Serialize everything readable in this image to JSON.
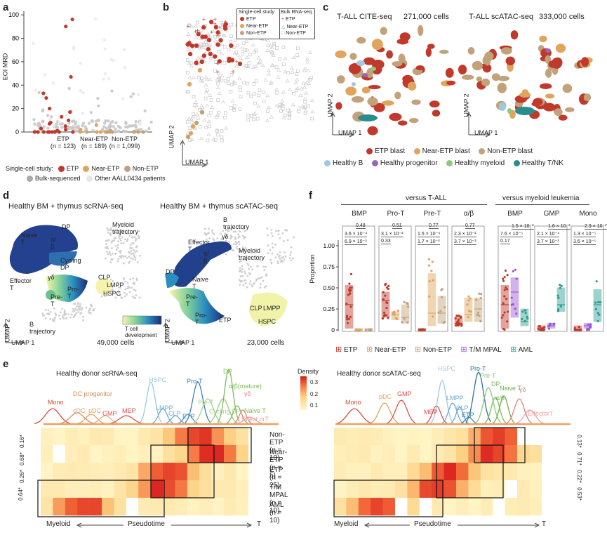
{
  "panel_labels": {
    "a": "a",
    "b": "b",
    "c": "c",
    "d": "d",
    "e": "e",
    "f": "f"
  },
  "colors": {
    "etp": "#c0392b",
    "near_etp": "#e0a45c",
    "non_etp": "#c2a27a",
    "tm_mpal": "#9b59d0",
    "aml": "#2a9d8f",
    "bulk": "#b0b0b0",
    "healthy_b": "#9ecae1",
    "healthy_prog": "#9467bd",
    "healthy_myeloid": "#8cc97a",
    "healthy_tnk": "#2a8d8d"
  },
  "panel_a": {
    "ylabel": "EOI MRD",
    "yticks": [
      "0",
      "20",
      "40",
      "60",
      "80",
      "100"
    ],
    "groups": [
      {
        "name": "ETP",
        "n": "(n = 123)"
      },
      {
        "name": "Near-ETP",
        "n": "(n = 189)"
      },
      {
        "name": "Non-ETP",
        "n": "(n = 1,099)"
      }
    ],
    "legend_title": "Single-cell study:",
    "legend_items": [
      "ETP",
      "Near-ETP",
      "Non-ETP"
    ],
    "legend_row2": [
      "Bulk-sequenced",
      "Other AALL0434 patients"
    ]
  },
  "panel_b": {
    "axis_x": "UMAP 1",
    "axis_y": "UMAP 2",
    "legend_sc_title": "Single-cell study",
    "legend_sc": [
      "ETP",
      "Near-ETP",
      "Non-ETP"
    ],
    "legend_bulk_title": "Bulk RNA-seq",
    "legend_bulk": [
      "ETP",
      "Near-ETP",
      "Non-ETP"
    ]
  },
  "panel_c": {
    "left_title": "T-ALL CITE-seq",
    "left_count": "271,000 cells",
    "right_title": "T-ALL scATAC-seq",
    "right_count": "333,000 cells",
    "axis_x": "UMAP 1",
    "axis_y": "UMAP 2",
    "legend_row1": [
      "ETP blast",
      "Near-ETP blast",
      "Non-ETP blast"
    ],
    "legend_row2": [
      "Healthy B",
      "Healthy progenitor",
      "Healthy myeloid",
      "Healthy T/NK"
    ]
  },
  "panel_d": {
    "left_title": "Healthy BM + thymus scRNA-seq",
    "left_count": "49,000 cells",
    "right_title": "Healthy BM + thymus scATAC-seq",
    "right_count": "23,000 cells",
    "axis_x": "UMAP 1",
    "axis_y": "UMAP 2",
    "colorbar_label": "T cell development",
    "left_labels": {
      "dp": "DP",
      "ab": "α/β",
      "naive": "Naive T",
      "cycling": "Cycling DP",
      "effector": "Effector T",
      "gd": "γδ",
      "prot": "Pro-T",
      "pret": "Pre-T",
      "clp": "CLP",
      "lmpp": "LMPP",
      "hspc": "HSPC",
      "myeloid": "Myeloid trajectory",
      "btraj": "B trajectory"
    },
    "right_labels": {
      "btraj": "B trajectory",
      "effector": "Effector T",
      "gd": "γδ",
      "ab": "α/β",
      "myeloid": "Myeloid trajectory",
      "dp": "DP",
      "naive": "Naive T",
      "pret": "Pre-T",
      "prot": "Pro-T",
      "etp": "ETP",
      "clp": "CLP",
      "lmpp": "LMPP",
      "hspc": "HSPC"
    }
  },
  "panel_e": {
    "left_title": "Healthy donor scRNA-seq",
    "right_title": "Healthy donor scATAC-seq",
    "density_label": "Density",
    "density_ticks": [
      "0.3",
      "0.2",
      "0.1"
    ],
    "left_curve_labels": {
      "mono": "Mono",
      "dcprog": "DC progenitor",
      "cdc": "cDC",
      "pdc": "pDC",
      "gmp": "GMP",
      "mep": "MEP",
      "hspc": "HSPC",
      "lmpp": "LMPP",
      "clp": "CLP",
      "etp": "ETP",
      "prot": "Pro-T",
      "pret": "Pre-T",
      "cycling": "Cycling DP",
      "dp": "DP",
      "abm": "α/β(mature)",
      "gd": "γδ",
      "naive": "Naive T",
      "effector": "Effect orT"
    },
    "right_curve_labels": {
      "mono": "Mono",
      "pdc": "pDC",
      "gmp": "GMP",
      "mep": "MEP",
      "hspc": "HSPC",
      "lmpp": "LMPP",
      "clp": "CLP",
      "etp": "ETP",
      "prot": "Pro-T",
      "pret": "Pre-T",
      "dp": "DP",
      "naive": "Naive T",
      "ab": "α/β",
      "gd": "γδ",
      "effector": "EffectorT"
    },
    "rows": [
      "Non-ETP (n = 10)",
      "Near-ETP (n = 5)",
      "ETP (n = 25)",
      "T/M MPAL (n = 10)",
      "AML (n = 10)"
    ],
    "left_pvals": [
      "0.16*",
      "0.68*",
      "0.26*",
      "0.64*"
    ],
    "right_pvals": [
      "0.13*",
      "0.71*",
      "0.22*",
      "0.53*"
    ],
    "axis_left": "Myeloid",
    "axis_mid": "Pseudotime",
    "axis_right": "T"
  },
  "panel_f": {
    "header_left": "versus T-ALL",
    "header_right": "versus myeloid leukemia",
    "ylabel": "Proportion",
    "yticks": [
      "0",
      "0.25",
      "0.50",
      "0.75",
      "1.00"
    ],
    "groups": [
      {
        "name": "BMP",
        "p": [
          "0.48",
          "3.6 × 10⁻⁴",
          "6.9 × 10⁻³"
        ]
      },
      {
        "name": "Pro-T",
        "p": [
          "0.51",
          "3.1 × 10⁻²",
          "0.33"
        ]
      },
      {
        "name": "Pre-T",
        "p": [
          "0.77",
          "1.5 × 10⁻⁴",
          "1.7 × 10⁻³"
        ]
      },
      {
        "name": "α/β",
        "p": [
          "0.77",
          "2.3 × 10⁻²",
          "3.7 × 10⁻²"
        ]
      },
      {
        "name": "BMP",
        "p": [
          "1.5 × 10⁻²",
          "7.6 × 10⁻⁵",
          "0.17"
        ]
      },
      {
        "name": "GMP",
        "p": [
          "1.6 × 10⁻²",
          "2.1 × 10⁻⁴",
          "3.7 × 10⁻³"
        ]
      },
      {
        "name": "Mono",
        "p": [
          "2.9 × 10⁻²",
          "1.3 × 10⁻⁵",
          "3.6 × 10⁻⁵"
        ]
      }
    ],
    "legend": [
      "ETP",
      "Near-ETP",
      "Non-ETP",
      "T/M MPAL",
      "AML"
    ]
  }
}
